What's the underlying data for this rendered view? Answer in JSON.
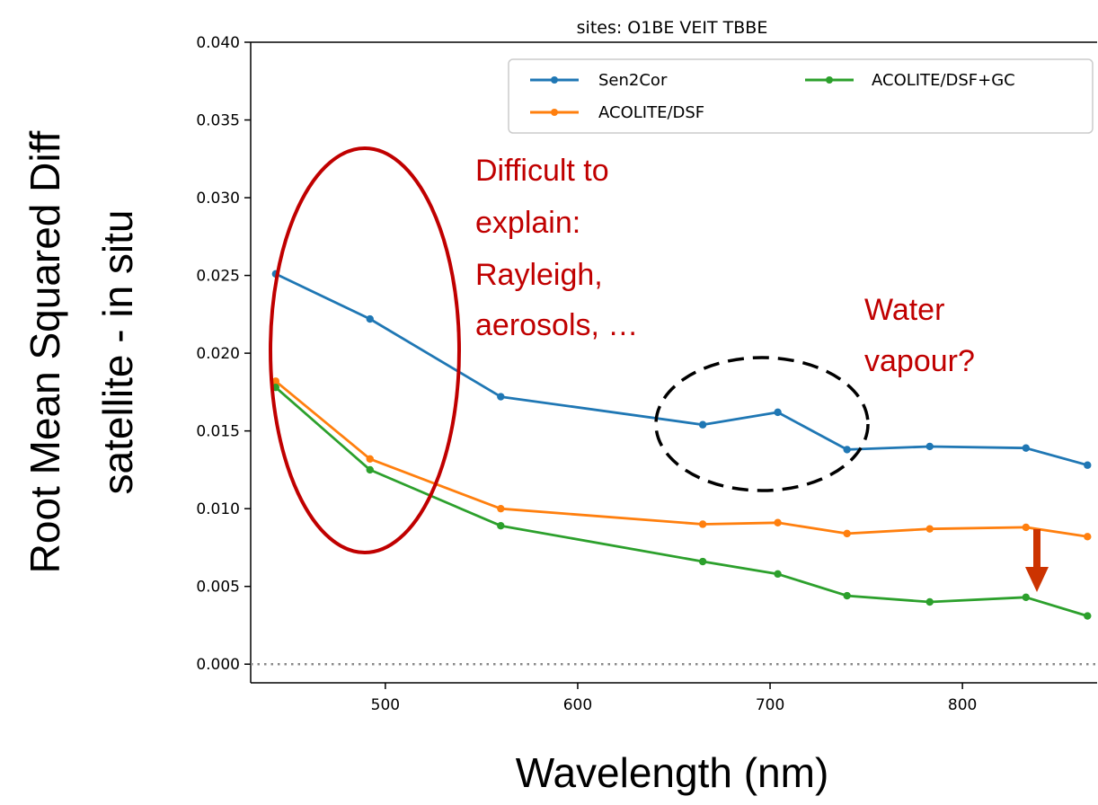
{
  "chart_data": {
    "type": "line",
    "title": "sites: O1BE VEIT TBBE",
    "xlabel": "Wavelength (nm)",
    "ylabel_lines": [
      "Root Mean Squared Diff",
      "satellite - in situ"
    ],
    "xlim": [
      430,
      870
    ],
    "ylim": [
      -0.0012,
      0.04
    ],
    "xticks": [
      500,
      600,
      700,
      800
    ],
    "yticks": [
      0.0,
      0.005,
      0.01,
      0.015,
      0.02,
      0.025,
      0.03,
      0.035,
      0.04
    ],
    "ytick_labels": [
      "0.000",
      "0.005",
      "0.010",
      "0.015",
      "0.020",
      "0.025",
      "0.030",
      "0.035",
      "0.040"
    ],
    "xtick_labels": [
      "500",
      "600",
      "700",
      "800"
    ],
    "x": [
      443,
      492,
      560,
      665,
      704,
      740,
      783,
      833,
      865
    ],
    "series": [
      {
        "name": "Sen2Cor",
        "color": "#1f77b4",
        "values": [
          0.0251,
          0.0222,
          0.0172,
          0.0154,
          0.0162,
          0.0138,
          0.014,
          0.0139,
          0.0128
        ]
      },
      {
        "name": "ACOLITE/DSF",
        "color": "#ff7f0e",
        "values": [
          0.0182,
          0.0132,
          0.01,
          0.009,
          0.0091,
          0.0084,
          0.0087,
          0.0088,
          0.0082
        ]
      },
      {
        "name": "ACOLITE/DSF+GC",
        "color": "#2ca02c",
        "values": [
          0.0178,
          0.0125,
          0.0089,
          0.0066,
          0.0058,
          0.0044,
          0.004,
          0.0043,
          0.0031
        ]
      }
    ],
    "reference_line": {
      "y": 0.0,
      "style": "dotted",
      "color": "#888888"
    },
    "legend_placement": "top-right",
    "grid": false,
    "annotations": {
      "difficult_lines": [
        "Difficult to",
        "explain:",
        "Rayleigh,",
        "aerosols, …"
      ],
      "water_lines": [
        "Water",
        "vapour?"
      ],
      "ellipse_red_color": "#c00000",
      "ellipse_black_color": "#000000",
      "arrow_color": "#cc3300"
    }
  }
}
